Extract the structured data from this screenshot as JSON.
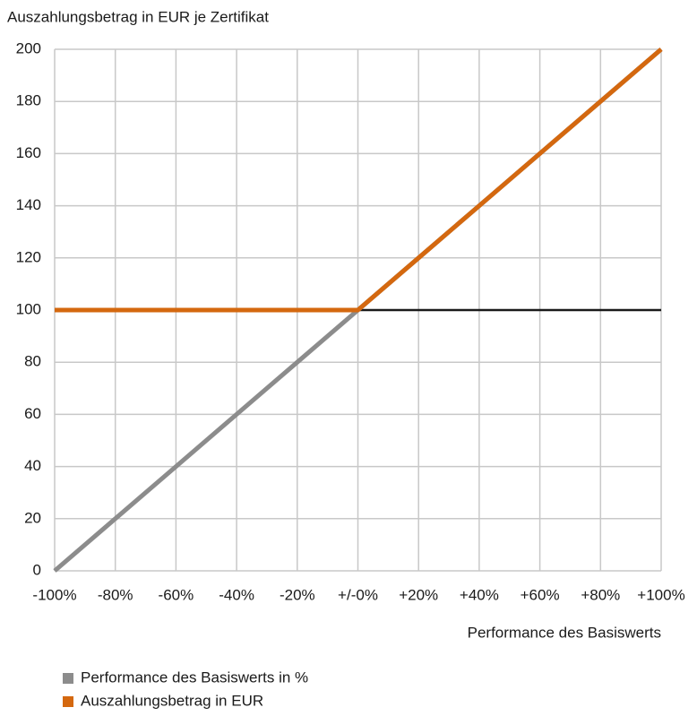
{
  "chart_data": {
    "type": "line",
    "ylabel": "Auszahlungsbetrag in EUR je Zertifikat",
    "xlabel": "Performance des Basiswerts",
    "x": [
      -100,
      -80,
      -60,
      -40,
      -20,
      0,
      20,
      40,
      60,
      80,
      100
    ],
    "series": [
      {
        "color": "#1a1a1a",
        "values": [
          null,
          null,
          null,
          null,
          null,
          100,
          100,
          100,
          100,
          100,
          100
        ]
      },
      {
        "name": "Performance des Basiswerts in %",
        "color": "#8c8c8c",
        "values": [
          0,
          20,
          40,
          60,
          80,
          100,
          120,
          140,
          160,
          180,
          200
        ]
      },
      {
        "name": "Auszahlungsbetrag in EUR",
        "color": "#d4680f",
        "values": [
          100,
          100,
          100,
          100,
          100,
          100,
          120,
          140,
          160,
          180,
          200
        ]
      }
    ],
    "xlim": [
      -100,
      100
    ],
    "xticks": [
      {
        "value": -100,
        "label": "-100%"
      },
      {
        "value": -80,
        "label": "-80%"
      },
      {
        "value": -60,
        "label": "-60%"
      },
      {
        "value": -40,
        "label": "-40%"
      },
      {
        "value": -20,
        "label": "-20%"
      },
      {
        "value": 0,
        "label": "+/-0%"
      },
      {
        "value": 20,
        "label": "+20%"
      },
      {
        "value": 40,
        "label": "+40%"
      },
      {
        "value": 60,
        "label": "+60%"
      },
      {
        "value": 80,
        "label": "+80%"
      },
      {
        "value": 100,
        "label": "+100%"
      }
    ],
    "ylim": [
      0,
      200
    ],
    "yticks": [
      0,
      20,
      40,
      60,
      80,
      100,
      120,
      140,
      160,
      180,
      200
    ],
    "grid": true
  }
}
